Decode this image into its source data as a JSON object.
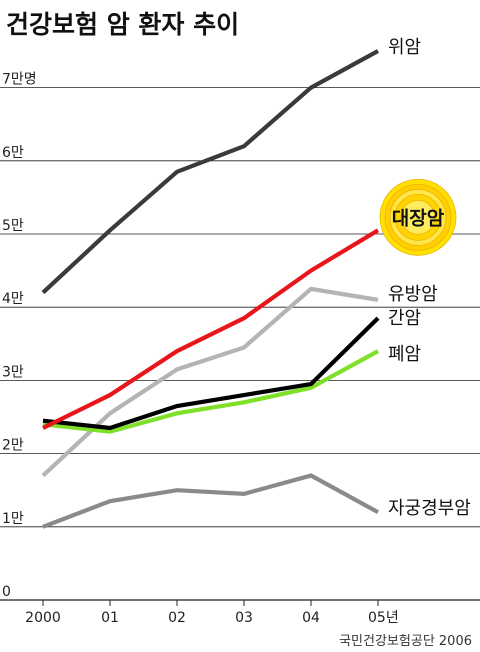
{
  "chart_data": {
    "type": "line",
    "title": "건강보험 암 환자 추이",
    "categories": [
      "2000",
      "01",
      "02",
      "03",
      "04",
      "05년"
    ],
    "y_tick_labels": [
      "0",
      "1만",
      "2만",
      "3만",
      "4만",
      "5만",
      "6만",
      "7만명"
    ],
    "ylim": [
      0,
      80000
    ],
    "grid": true,
    "series": [
      {
        "name": "위암",
        "color": "#3a3a3a",
        "values": [
          42000,
          50500,
          58500,
          62000,
          70000,
          75000
        ]
      },
      {
        "name": "대장암",
        "color": "#e8151b",
        "values": [
          23500,
          28000,
          34000,
          38500,
          45000,
          50500
        ],
        "highlight": true
      },
      {
        "name": "유방암",
        "color": "#b4b4b4",
        "values": [
          17000,
          25500,
          31500,
          34500,
          42500,
          41000
        ]
      },
      {
        "name": "간암",
        "color": "#000000",
        "values": [
          24500,
          23500,
          26500,
          28000,
          29500,
          38500
        ]
      },
      {
        "name": "폐암",
        "color": "#7fe02a",
        "values": [
          24000,
          23000,
          25500,
          27000,
          29000,
          34000
        ]
      },
      {
        "name": "자궁경부암",
        "color": "#8a8a8a",
        "values": [
          10000,
          13500,
          15000,
          14500,
          17000,
          12000
        ]
      }
    ],
    "source": "국민건강보험공단 2006"
  }
}
